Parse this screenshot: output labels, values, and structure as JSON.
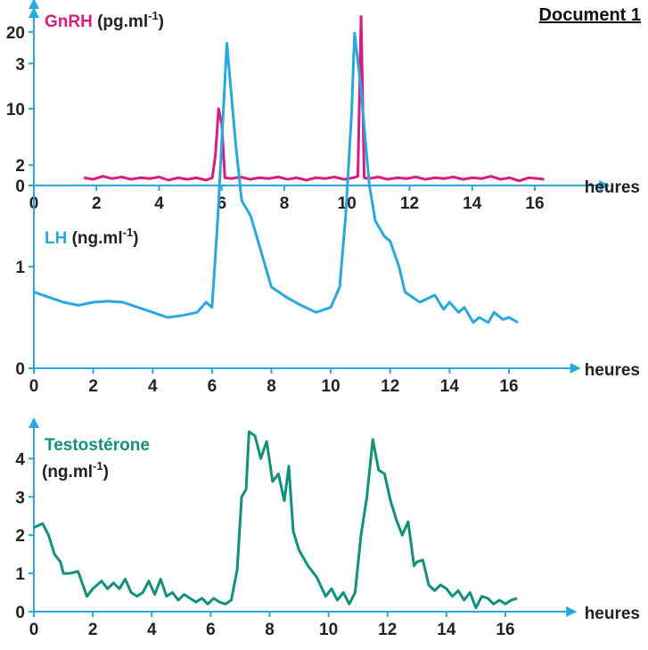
{
  "document_title": "Document 1",
  "chart_data": [
    {
      "type": "line",
      "series": [
        {
          "name": "GnRH",
          "color": "#d81b7e",
          "x": [
            1.6,
            1.9,
            2.2,
            2.5,
            2.8,
            3.1,
            3.4,
            3.7,
            4.0,
            4.3,
            4.6,
            4.9,
            5.2,
            5.5,
            5.7,
            5.8,
            5.9,
            6.0,
            6.1,
            6.3,
            6.6,
            6.9,
            7.2,
            7.5,
            7.8,
            8.1,
            8.4,
            8.7,
            9.0,
            9.3,
            9.6,
            9.9,
            10.2,
            10.35,
            10.45,
            10.55,
            10.7,
            11.0,
            11.3,
            11.6,
            11.9,
            12.2,
            12.5,
            12.8,
            13.1,
            13.4,
            13.7,
            14.0,
            14.3,
            14.6,
            14.9,
            15.2,
            15.5,
            15.8,
            16.1,
            16.3
          ],
          "y": [
            1.0,
            0.8,
            1.2,
            0.9,
            1.1,
            0.8,
            1.0,
            0.9,
            1.1,
            0.7,
            1.0,
            0.8,
            1.0,
            0.7,
            1.0,
            4.0,
            10.0,
            8.0,
            1.0,
            0.9,
            1.1,
            0.8,
            1.0,
            0.9,
            1.1,
            0.8,
            1.0,
            0.7,
            1.0,
            0.9,
            1.1,
            0.8,
            1.0,
            1.2,
            22.0,
            1.0,
            0.9,
            1.1,
            0.8,
            1.0,
            0.9,
            1.1,
            0.8,
            1.0,
            0.9,
            1.1,
            0.8,
            1.0,
            0.9,
            1.2,
            0.8,
            1.0,
            0.6,
            1.0,
            0.9,
            0.8
          ]
        }
      ],
      "title": "GnRH",
      "unit": "(pg.ml-1)",
      "xlabel": "heures",
      "xticks": [
        0,
        2,
        4,
        6,
        8,
        10,
        12,
        14,
        16
      ],
      "yticks": [
        0,
        10,
        20
      ],
      "xlim": [
        0,
        18
      ],
      "ylim": [
        0,
        23
      ]
    },
    {
      "type": "line",
      "series": [
        {
          "name": "LH",
          "color": "#29a8df",
          "x": [
            0,
            0.5,
            1.0,
            1.5,
            2.0,
            2.5,
            3.0,
            3.5,
            4.0,
            4.5,
            5.0,
            5.5,
            5.8,
            6.0,
            6.2,
            6.5,
            6.8,
            7.0,
            7.3,
            7.6,
            8.0,
            8.5,
            9.0,
            9.5,
            10.0,
            10.3,
            10.5,
            10.7,
            10.8,
            11.0,
            11.3,
            11.5,
            11.8,
            12.0,
            12.3,
            12.5,
            13.0,
            13.5,
            13.8,
            14.0,
            14.3,
            14.5,
            14.8,
            15.0,
            15.3,
            15.5,
            15.8,
            16.0,
            16.3
          ],
          "y": [
            0.75,
            0.7,
            0.65,
            0.62,
            0.65,
            0.66,
            0.65,
            0.6,
            0.55,
            0.5,
            0.52,
            0.55,
            0.65,
            0.6,
            1.5,
            3.2,
            2.2,
            1.65,
            1.5,
            1.2,
            0.8,
            0.7,
            0.62,
            0.55,
            0.6,
            0.8,
            1.5,
            2.5,
            3.3,
            2.8,
            1.8,
            1.45,
            1.3,
            1.25,
            1.0,
            0.75,
            0.65,
            0.72,
            0.58,
            0.65,
            0.55,
            0.6,
            0.45,
            0.5,
            0.45,
            0.55,
            0.48,
            0.5,
            0.45
          ]
        }
      ],
      "title": "LH",
      "unit": "(ng.ml-1)",
      "xlabel": "heures",
      "xticks": [
        0,
        2,
        4,
        6,
        8,
        10,
        12,
        14,
        16
      ],
      "yticks": [
        0,
        1,
        2,
        3
      ],
      "xlim": [
        0,
        18
      ],
      "ylim": [
        0,
        3.45
      ]
    },
    {
      "type": "line",
      "series": [
        {
          "name": "Testostérone",
          "color": "#12907a",
          "x": [
            0,
            0.3,
            0.5,
            0.7,
            0.9,
            1.0,
            1.2,
            1.5,
            1.8,
            2.0,
            2.3,
            2.5,
            2.7,
            2.9,
            3.1,
            3.3,
            3.5,
            3.7,
            3.9,
            4.1,
            4.3,
            4.5,
            4.7,
            4.9,
            5.1,
            5.3,
            5.5,
            5.7,
            5.9,
            6.1,
            6.3,
            6.5,
            6.7,
            6.9,
            7.05,
            7.2,
            7.3,
            7.5,
            7.7,
            7.9,
            8.1,
            8.3,
            8.5,
            8.65,
            8.8,
            9.0,
            9.3,
            9.6,
            9.9,
            10.1,
            10.3,
            10.5,
            10.7,
            10.9,
            11.1,
            11.3,
            11.5,
            11.7,
            11.9,
            12.1,
            12.3,
            12.5,
            12.7,
            12.9,
            13.0,
            13.2,
            13.4,
            13.6,
            13.8,
            14.0,
            14.2,
            14.4,
            14.6,
            14.8,
            15.0,
            15.2,
            15.4,
            15.6,
            15.8,
            16.0,
            16.2,
            16.4
          ],
          "y": [
            2.2,
            2.3,
            2.0,
            1.5,
            1.3,
            1.0,
            1.0,
            1.05,
            0.4,
            0.6,
            0.8,
            0.6,
            0.75,
            0.6,
            0.85,
            0.5,
            0.4,
            0.5,
            0.8,
            0.45,
            0.85,
            0.4,
            0.5,
            0.3,
            0.45,
            0.35,
            0.25,
            0.35,
            0.2,
            0.35,
            0.25,
            0.2,
            0.3,
            1.1,
            3.0,
            3.2,
            4.7,
            4.6,
            4.0,
            4.45,
            3.4,
            3.6,
            2.9,
            3.8,
            2.1,
            1.6,
            1.2,
            0.9,
            0.4,
            0.6,
            0.3,
            0.5,
            0.2,
            0.5,
            2.0,
            3.0,
            4.5,
            3.7,
            3.6,
            2.9,
            2.4,
            2.0,
            2.35,
            1.2,
            1.3,
            1.35,
            0.7,
            0.55,
            0.7,
            0.6,
            0.4,
            0.55,
            0.3,
            0.5,
            0.1,
            0.4,
            0.35,
            0.2,
            0.3,
            0.2,
            0.3,
            0.35
          ]
        }
      ],
      "title": "Testostérone",
      "unit": "(ng.ml-1)",
      "xlabel": "heures",
      "xticks": [
        0,
        2,
        4,
        6,
        8,
        10,
        12,
        14,
        16
      ],
      "yticks": [
        0,
        1,
        2,
        3,
        4
      ],
      "xlim": [
        0,
        18
      ],
      "ylim": [
        0,
        4.8
      ]
    }
  ]
}
